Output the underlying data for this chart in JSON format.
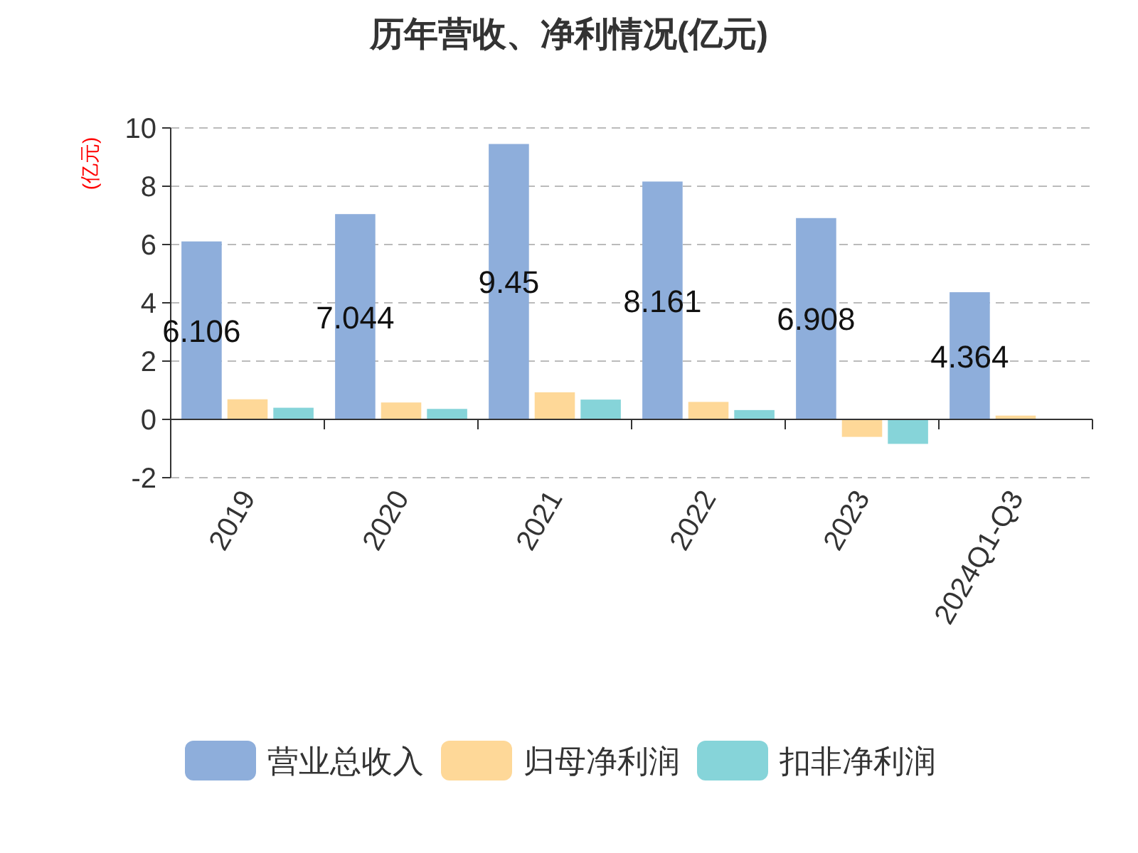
{
  "chart_data": {
    "type": "bar",
    "title": "历年营收、净利情况(亿元)",
    "ylabel": "(亿元)",
    "categories": [
      "2019",
      "2020",
      "2021",
      "2022",
      "2023",
      "2024Q1-Q3"
    ],
    "series": [
      {
        "name": "营业总收入",
        "color": "#8eaedb",
        "values": [
          6.106,
          7.044,
          9.45,
          8.161,
          6.908,
          4.364
        ],
        "value_labels": [
          "6.106",
          "7.044",
          "9.45",
          "8.161",
          "6.908",
          "4.364"
        ]
      },
      {
        "name": "归母净利润",
        "color": "#fed898",
        "values": [
          0.69,
          0.58,
          0.93,
          0.6,
          -0.6,
          0.13
        ]
      },
      {
        "name": "扣非净利润",
        "color": "#86d4d9",
        "values": [
          0.4,
          0.36,
          0.68,
          0.32,
          -0.84,
          null
        ]
      }
    ],
    "ylim": [
      -2,
      10
    ],
    "yticks": [
      -2,
      0,
      2,
      4,
      6,
      8,
      10
    ],
    "grid": "y",
    "legend": "bottom"
  }
}
